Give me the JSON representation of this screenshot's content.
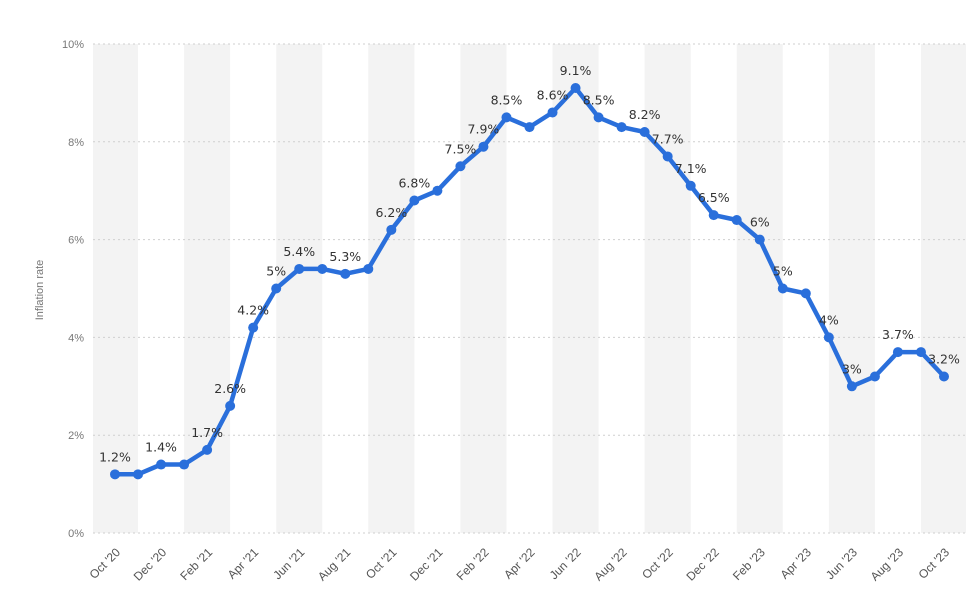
{
  "chart_data": {
    "type": "line",
    "x": [
      "Oct '20",
      "Nov '20",
      "Dec '20",
      "Jan '21",
      "Feb '21",
      "Mar '21",
      "Apr '21",
      "May '21",
      "Jun '21",
      "Jul '21",
      "Aug '21",
      "Sep '21",
      "Oct '21",
      "Nov '21",
      "Dec '21",
      "Jan '22",
      "Feb '22",
      "Mar '22",
      "Apr '22",
      "May '22",
      "Jun '22",
      "Jul '22",
      "Aug '22",
      "Sep '22",
      "Oct '22",
      "Nov '22",
      "Dec '22",
      "Jan '23",
      "Feb '23",
      "Mar '23",
      "Apr '23",
      "May '23",
      "Jun '23",
      "Jul '23",
      "Aug '23",
      "Sep '23",
      "Oct '23"
    ],
    "x_tick_labels": [
      "Oct '20",
      "Dec '20",
      "Feb '21",
      "Apr '21",
      "Jun '21",
      "Aug '21",
      "Oct '21",
      "Dec '21",
      "Feb '22",
      "Apr '22",
      "Jun '22",
      "Aug '22",
      "Oct '22",
      "Dec '22",
      "Feb '23",
      "Apr '23",
      "Jun '23",
      "Aug '23",
      "Oct '23"
    ],
    "values": [
      1.2,
      1.2,
      1.4,
      1.4,
      1.7,
      2.6,
      4.2,
      5.0,
      5.4,
      5.4,
      5.3,
      5.4,
      6.2,
      6.8,
      7.0,
      7.5,
      7.9,
      8.5,
      8.3,
      8.6,
      9.1,
      8.5,
      8.3,
      8.2,
      7.7,
      7.1,
      6.5,
      6.4,
      6.0,
      5.0,
      4.9,
      4.0,
      3.0,
      3.2,
      3.7,
      3.7,
      3.2
    ],
    "data_labels": [
      {
        "index": 0,
        "text": "1.2%"
      },
      {
        "index": 2,
        "text": "1.4%"
      },
      {
        "index": 4,
        "text": "1.7%"
      },
      {
        "index": 5,
        "text": "2.6%"
      },
      {
        "index": 6,
        "text": "4.2%"
      },
      {
        "index": 7,
        "text": "5%"
      },
      {
        "index": 8,
        "text": "5.4%"
      },
      {
        "index": 10,
        "text": "5.3%"
      },
      {
        "index": 12,
        "text": "6.2%"
      },
      {
        "index": 13,
        "text": "6.8%"
      },
      {
        "index": 15,
        "text": "7.5%"
      },
      {
        "index": 16,
        "text": "7.9%"
      },
      {
        "index": 17,
        "text": "8.5%"
      },
      {
        "index": 19,
        "text": "8.6%"
      },
      {
        "index": 20,
        "text": "9.1%"
      },
      {
        "index": 21,
        "text": "8.5%"
      },
      {
        "index": 23,
        "text": "8.2%"
      },
      {
        "index": 24,
        "text": "7.7%"
      },
      {
        "index": 25,
        "text": "7.1%"
      },
      {
        "index": 26,
        "text": "6.5%"
      },
      {
        "index": 28,
        "text": "6%"
      },
      {
        "index": 29,
        "text": "5%"
      },
      {
        "index": 31,
        "text": "4%"
      },
      {
        "index": 32,
        "text": "3%"
      },
      {
        "index": 34,
        "text": "3.7%"
      },
      {
        "index": 36,
        "text": "3.2%"
      }
    ],
    "y_ticks": [
      0,
      2,
      4,
      6,
      8,
      10
    ],
    "y_tick_labels": [
      "0%",
      "2%",
      "4%",
      "6%",
      "8%",
      "10%"
    ],
    "ylim": [
      0,
      10
    ],
    "ylabel": "Inflation rate",
    "xlabel": "",
    "title": "",
    "grid": true,
    "line_color": "#2a6fdb",
    "band_color": "#f3f3f3"
  }
}
